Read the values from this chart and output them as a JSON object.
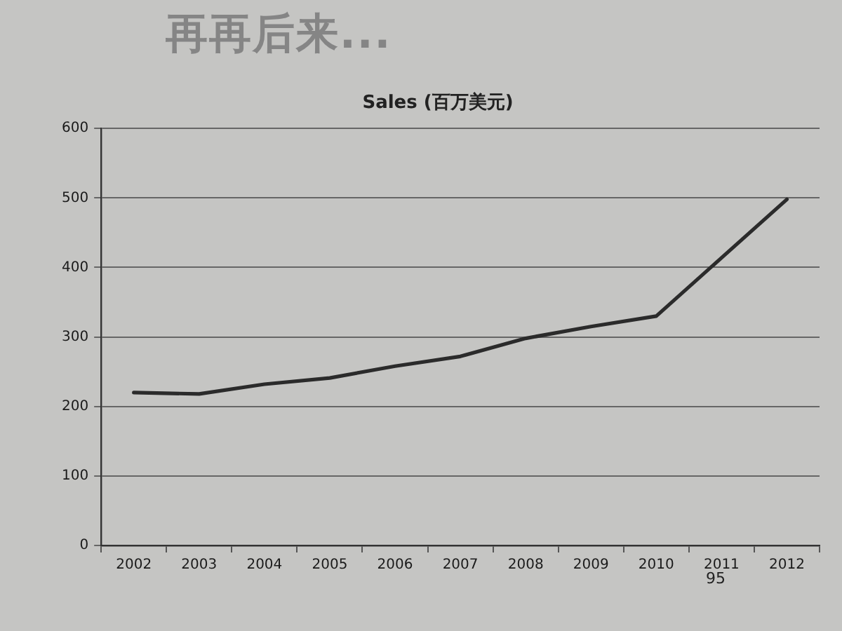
{
  "chart_data": {
    "type": "line",
    "title": "Sales (百万美元)",
    "annotations": [
      "再再后来...",
      "95"
    ],
    "categories": [
      "2002",
      "2003",
      "2004",
      "2005",
      "2006",
      "2007",
      "2008",
      "2009",
      "2010",
      "2011",
      "2012"
    ],
    "values": [
      220,
      218,
      232,
      241,
      258,
      272,
      298,
      315,
      330,
      414,
      498
    ],
    "color": "#2b2b2b",
    "ylim": [
      0,
      600
    ],
    "yticks": [
      0,
      100,
      200,
      300,
      400,
      500,
      600
    ],
    "grid": "y",
    "marker": "none",
    "line_style": "solid"
  }
}
